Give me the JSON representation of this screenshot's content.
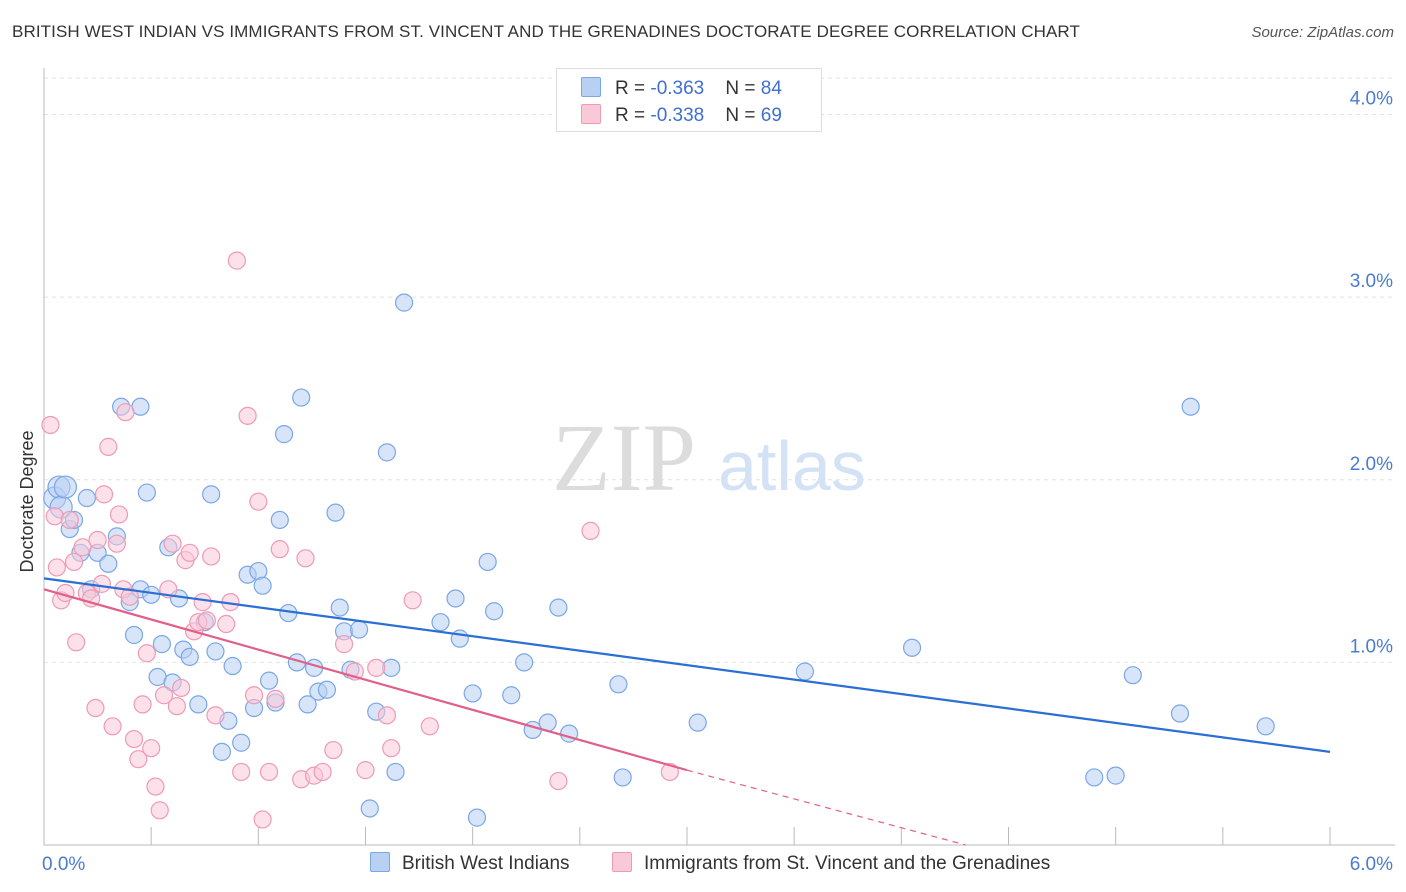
{
  "title": "BRITISH WEST INDIAN VS IMMIGRANTS FROM ST. VINCENT AND THE GRENADINES DOCTORATE DEGREE CORRELATION CHART",
  "source": "Source: ZipAtlas.com",
  "watermark": {
    "zip": "ZIP",
    "atlas": "atlas"
  },
  "legend": {
    "rows": [
      {
        "r_label": "R = ",
        "r_value": "-0.363",
        "n_label": "N = ",
        "n_value": "84"
      },
      {
        "r_label": "R = ",
        "r_value": "-0.338",
        "n_label": "N = ",
        "n_value": "69"
      }
    ]
  },
  "chart_data": {
    "type": "scatter",
    "ylabel": "Doctorate Degree",
    "xlabel": "",
    "xlim": [
      0,
      6
    ],
    "ylim": [
      0,
      4.2
    ],
    "x_tick_labels": [
      "0.0%",
      "6.0%"
    ],
    "y_ticks": [
      {
        "value": 1,
        "label": "1.0%"
      },
      {
        "value": 2,
        "label": "2.0%"
      },
      {
        "value": 3,
        "label": "3.0%"
      },
      {
        "value": 4,
        "label": "4.0%"
      }
    ],
    "grid": true,
    "legend_position": "top-center",
    "series": [
      {
        "name": "British West Indians",
        "color": "#7aa7e6",
        "fill": "#b8d0f2",
        "trend": {
          "x0": 0.0,
          "y0": 1.46,
          "x1": 6.0,
          "y1": 0.51,
          "color": "#2a6fd4"
        },
        "points": [
          [
            0.05,
            1.9
          ],
          [
            0.07,
            1.96
          ],
          [
            0.08,
            1.85
          ],
          [
            0.1,
            1.96
          ],
          [
            0.12,
            1.73
          ],
          [
            0.14,
            1.78
          ],
          [
            0.17,
            1.6
          ],
          [
            0.2,
            1.9
          ],
          [
            0.22,
            1.4
          ],
          [
            0.25,
            1.6
          ],
          [
            0.3,
            1.54
          ],
          [
            0.34,
            1.69
          ],
          [
            0.36,
            2.4
          ],
          [
            0.4,
            1.33
          ],
          [
            0.42,
            1.15
          ],
          [
            0.45,
            1.4
          ],
          [
            0.45,
            2.4
          ],
          [
            0.48,
            1.93
          ],
          [
            0.5,
            1.37
          ],
          [
            0.53,
            0.92
          ],
          [
            0.55,
            1.1
          ],
          [
            0.58,
            1.63
          ],
          [
            0.6,
            0.89
          ],
          [
            0.63,
            1.35
          ],
          [
            0.65,
            1.07
          ],
          [
            0.68,
            1.03
          ],
          [
            0.72,
            0.77
          ],
          [
            0.75,
            1.22
          ],
          [
            0.78,
            1.92
          ],
          [
            0.8,
            1.06
          ],
          [
            0.83,
            0.51
          ],
          [
            0.86,
            0.68
          ],
          [
            0.88,
            0.98
          ],
          [
            0.92,
            0.56
          ],
          [
            0.95,
            1.48
          ],
          [
            0.98,
            0.75
          ],
          [
            1.0,
            1.5
          ],
          [
            1.02,
            1.42
          ],
          [
            1.05,
            0.9
          ],
          [
            1.08,
            0.78
          ],
          [
            1.1,
            1.78
          ],
          [
            1.12,
            2.25
          ],
          [
            1.14,
            1.27
          ],
          [
            1.18,
            1.0
          ],
          [
            1.2,
            2.45
          ],
          [
            1.23,
            0.77
          ],
          [
            1.26,
            0.97
          ],
          [
            1.28,
            0.84
          ],
          [
            1.32,
            0.85
          ],
          [
            1.36,
            1.82
          ],
          [
            1.38,
            1.3
          ],
          [
            1.4,
            1.17
          ],
          [
            1.43,
            0.96
          ],
          [
            1.47,
            1.18
          ],
          [
            1.52,
            0.2
          ],
          [
            1.55,
            0.73
          ],
          [
            1.6,
            2.15
          ],
          [
            1.62,
            0.97
          ],
          [
            1.64,
            0.4
          ],
          [
            1.68,
            2.97
          ],
          [
            1.85,
            1.22
          ],
          [
            1.92,
            1.35
          ],
          [
            1.94,
            1.13
          ],
          [
            2.0,
            0.83
          ],
          [
            2.02,
            0.15
          ],
          [
            2.07,
            1.55
          ],
          [
            2.1,
            1.28
          ],
          [
            2.18,
            0.82
          ],
          [
            2.24,
            1.0
          ],
          [
            2.28,
            0.63
          ],
          [
            2.35,
            0.67
          ],
          [
            2.4,
            1.3
          ],
          [
            2.45,
            0.61
          ],
          [
            2.68,
            0.88
          ],
          [
            2.7,
            0.37
          ],
          [
            3.05,
            0.67
          ],
          [
            3.55,
            0.95
          ],
          [
            4.05,
            1.08
          ],
          [
            4.9,
            0.37
          ],
          [
            5.0,
            0.38
          ],
          [
            5.08,
            0.93
          ],
          [
            5.3,
            0.72
          ],
          [
            5.35,
            2.4
          ],
          [
            5.7,
            0.65
          ]
        ]
      },
      {
        "name": "Immigrants from St. Vincent and the Grenadines",
        "color": "#ef9ab4",
        "fill": "#f9c9d8",
        "trend": {
          "x0": 0.0,
          "y0": 1.4,
          "x1": 3.0,
          "y1": 0.41,
          "dash_x1": 4.3,
          "dash_y1": 0.0,
          "color": "#e0608a"
        },
        "points": [
          [
            0.03,
            2.3
          ],
          [
            0.05,
            1.8
          ],
          [
            0.06,
            1.52
          ],
          [
            0.08,
            1.34
          ],
          [
            0.1,
            1.38
          ],
          [
            0.12,
            1.78
          ],
          [
            0.14,
            1.55
          ],
          [
            0.15,
            1.11
          ],
          [
            0.18,
            1.63
          ],
          [
            0.2,
            1.38
          ],
          [
            0.22,
            1.35
          ],
          [
            0.24,
            0.75
          ],
          [
            0.25,
            1.67
          ],
          [
            0.27,
            1.43
          ],
          [
            0.28,
            1.92
          ],
          [
            0.3,
            2.18
          ],
          [
            0.32,
            0.65
          ],
          [
            0.34,
            1.65
          ],
          [
            0.35,
            1.81
          ],
          [
            0.37,
            1.4
          ],
          [
            0.38,
            2.37
          ],
          [
            0.4,
            1.36
          ],
          [
            0.42,
            0.58
          ],
          [
            0.44,
            0.47
          ],
          [
            0.46,
            0.77
          ],
          [
            0.48,
            1.05
          ],
          [
            0.5,
            0.53
          ],
          [
            0.52,
            0.32
          ],
          [
            0.54,
            0.19
          ],
          [
            0.56,
            0.82
          ],
          [
            0.58,
            1.4
          ],
          [
            0.6,
            1.65
          ],
          [
            0.62,
            0.76
          ],
          [
            0.64,
            0.86
          ],
          [
            0.66,
            1.56
          ],
          [
            0.68,
            1.6
          ],
          [
            0.7,
            1.17
          ],
          [
            0.72,
            1.22
          ],
          [
            0.74,
            1.33
          ],
          [
            0.76,
            1.23
          ],
          [
            0.78,
            1.58
          ],
          [
            0.8,
            0.71
          ],
          [
            0.85,
            1.21
          ],
          [
            0.87,
            1.33
          ],
          [
            0.9,
            3.2
          ],
          [
            0.92,
            0.4
          ],
          [
            0.95,
            2.35
          ],
          [
            0.98,
            0.82
          ],
          [
            1.0,
            1.88
          ],
          [
            1.02,
            0.14
          ],
          [
            1.05,
            0.4
          ],
          [
            1.08,
            0.8
          ],
          [
            1.1,
            1.62
          ],
          [
            1.2,
            0.36
          ],
          [
            1.22,
            1.57
          ],
          [
            1.26,
            0.38
          ],
          [
            1.3,
            0.4
          ],
          [
            1.35,
            0.52
          ],
          [
            1.4,
            1.1
          ],
          [
            1.45,
            0.95
          ],
          [
            1.5,
            0.41
          ],
          [
            1.55,
            0.97
          ],
          [
            1.6,
            0.71
          ],
          [
            1.62,
            0.53
          ],
          [
            1.72,
            1.34
          ],
          [
            1.8,
            0.65
          ],
          [
            2.4,
            0.35
          ],
          [
            2.55,
            1.72
          ],
          [
            2.92,
            0.4
          ]
        ]
      }
    ]
  }
}
